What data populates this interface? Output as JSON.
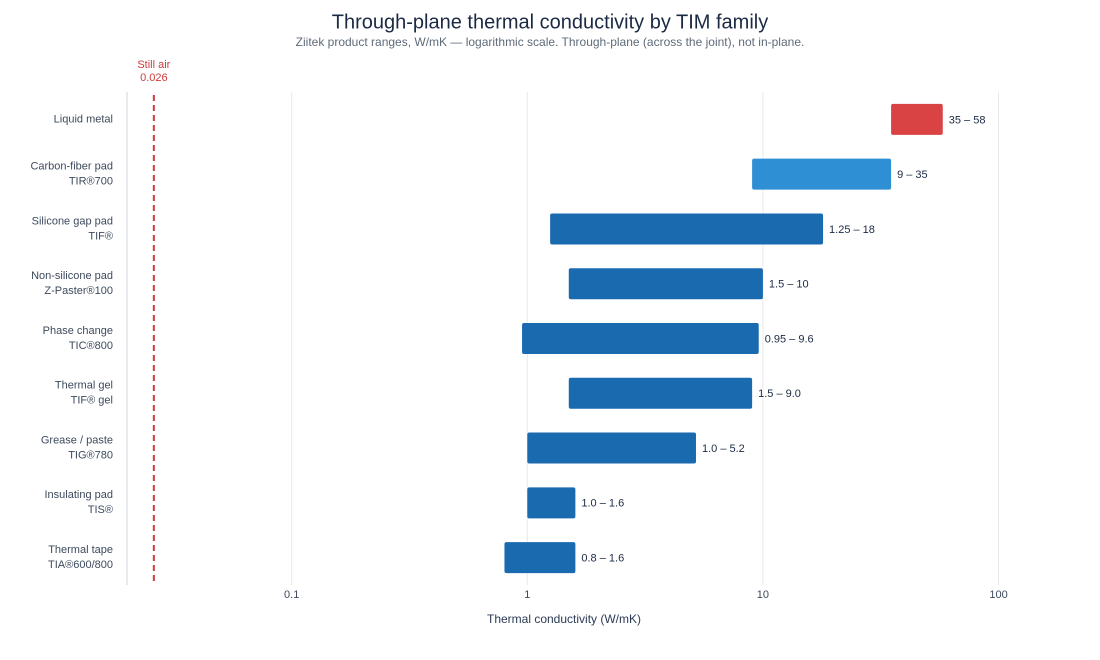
{
  "chart_data": {
    "type": "range-bar",
    "title": "Through-plane thermal conductivity by TIM family",
    "subtitle": "Ziitek product ranges, W/mK — logarithmic scale. Through-plane (across the joint), not in-plane.",
    "x_label": "Thermal conductivity (W/mK)",
    "categories": [
      [
        "Liquid metal"
      ],
      [
        "Carbon-fiber pad",
        "TIR®700"
      ],
      [
        "Silicone gap pad",
        "TIF®"
      ],
      [
        "Non-silicone pad",
        "Z-Paster®100"
      ],
      [
        "Phase change",
        "TIC®800"
      ],
      [
        "Thermal gel",
        "TIF® gel"
      ],
      [
        "Grease / paste",
        "TIG®780"
      ],
      [
        "Insulating pad",
        "TIS®"
      ],
      [
        "Thermal tape",
        "TIA®600/800"
      ]
    ],
    "low": [
      35,
      9,
      1.25,
      1.5,
      0.95,
      1.5,
      1.0,
      1.0,
      0.8
    ],
    "high": [
      58,
      35,
      18,
      10,
      9.6,
      9.0,
      5.2,
      1.6,
      1.6
    ],
    "value_labels": [
      "35 – 58",
      "9 – 35",
      "1.25 – 18",
      "1.5 – 10",
      "0.95 – 9.6",
      "1.5 – 9.0",
      "1.0 – 5.2",
      "1.0 – 1.6",
      "0.8 – 1.6"
    ],
    "colors": [
      "#d94343",
      "#2f8fd5",
      "#1a6ab0",
      "#1a6ab0",
      "#1a6ab0",
      "#1a6ab0",
      "#1a6ab0",
      "#1a6ab0",
      "#1a6ab0"
    ],
    "xscale": "log",
    "xlim": [
      0.02,
      150
    ],
    "xticks": [
      0.1,
      1,
      10,
      100
    ],
    "grid": true,
    "reference": {
      "label": "Still air",
      "value": 0.026,
      "color": "#d03a3a"
    }
  }
}
